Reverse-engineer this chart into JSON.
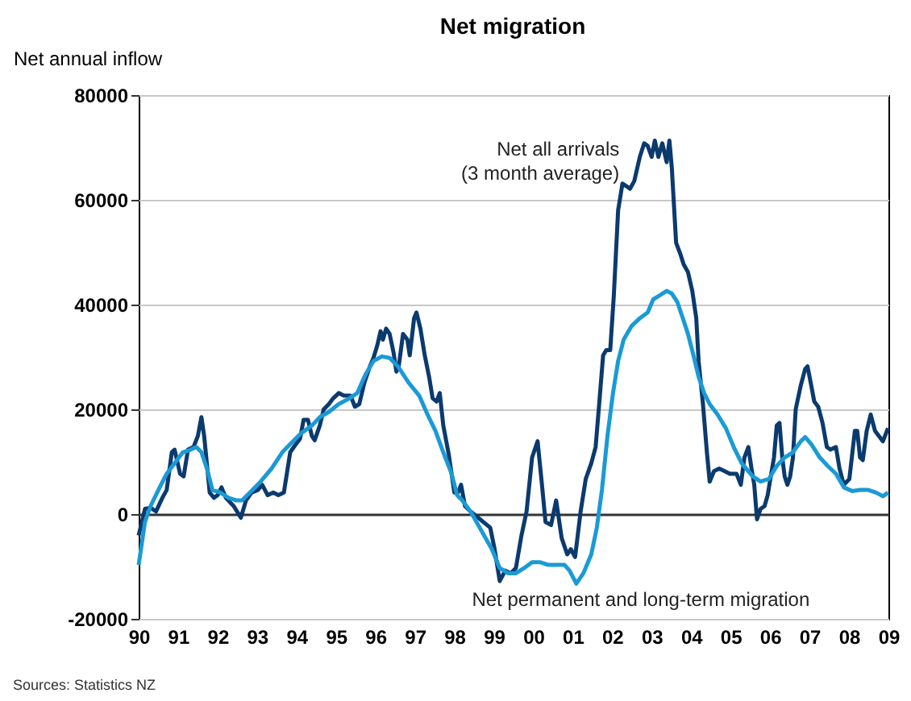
{
  "chart_data": {
    "type": "line",
    "title": "Net migration",
    "ylabel": "Net annual inflow",
    "annotations": [
      "Sources: Statistics NZ"
    ],
    "xlim": [
      1990,
      2009
    ],
    "xticks": [
      {
        "value": 1990,
        "label": "90"
      },
      {
        "value": 1991,
        "label": "91"
      },
      {
        "value": 1992,
        "label": "92"
      },
      {
        "value": 1993,
        "label": "93"
      },
      {
        "value": 1994,
        "label": "94"
      },
      {
        "value": 1995,
        "label": "95"
      },
      {
        "value": 1996,
        "label": "96"
      },
      {
        "value": 1997,
        "label": "97"
      },
      {
        "value": 1998,
        "label": "98"
      },
      {
        "value": 1999,
        "label": "99"
      },
      {
        "value": 2000,
        "label": "00"
      },
      {
        "value": 2001,
        "label": "01"
      },
      {
        "value": 2002,
        "label": "02"
      },
      {
        "value": 2003,
        "label": "03"
      },
      {
        "value": 2004,
        "label": "04"
      },
      {
        "value": 2005,
        "label": "05"
      },
      {
        "value": 2006,
        "label": "06"
      },
      {
        "value": 2007,
        "label": "07"
      },
      {
        "value": 2008,
        "label": "08"
      },
      {
        "value": 2009,
        "label": "09"
      }
    ],
    "ylim": [
      -20000,
      80000
    ],
    "yticks": [
      -20000,
      0,
      20000,
      40000,
      60000,
      80000
    ],
    "grid": "y",
    "line_style": "solid",
    "series": [
      {
        "name": "Net all arrivals\n(3 month average)",
        "color": "#0b3a6e",
        "x": [
          1990.0,
          1990.16,
          1990.3,
          1990.44,
          1990.6,
          1990.71,
          1990.84,
          1990.91,
          1991.05,
          1991.14,
          1991.25,
          1991.39,
          1991.5,
          1991.59,
          1991.66,
          1991.8,
          1991.91,
          1992.0,
          1992.1,
          1992.21,
          1992.41,
          1992.59,
          1992.72,
          1992.86,
          1993.02,
          1993.13,
          1993.27,
          1993.41,
          1993.54,
          1993.68,
          1993.84,
          1993.98,
          1994.09,
          1994.18,
          1994.29,
          1994.39,
          1994.46,
          1994.59,
          1994.69,
          1994.82,
          1994.93,
          1995.07,
          1995.2,
          1995.37,
          1995.48,
          1995.59,
          1995.72,
          1995.86,
          1995.95,
          1996.05,
          1996.13,
          1996.19,
          1996.27,
          1996.36,
          1996.46,
          1996.53,
          1996.59,
          1996.7,
          1996.81,
          1996.87,
          1996.98,
          1997.04,
          1997.14,
          1997.25,
          1997.36,
          1997.45,
          1997.55,
          1997.63,
          1997.72,
          1997.86,
          1998.0,
          1998.09,
          1998.17,
          1998.27,
          1998.41,
          1998.91,
          1999.02,
          1999.15,
          1999.29,
          1999.43,
          1999.56,
          1999.7,
          1999.83,
          1999.97,
          2000.11,
          2000.22,
          2000.31,
          2000.45,
          2000.58,
          2000.72,
          2000.86,
          2000.95,
          2001.06,
          2001.2,
          2001.33,
          2001.47,
          2001.58,
          2001.67,
          2001.77,
          2001.85,
          2001.95,
          2002.04,
          2002.15,
          2002.26,
          2002.36,
          2002.45,
          2002.56,
          2002.7,
          2002.81,
          2002.9,
          2003.0,
          2003.08,
          2003.17,
          2003.27,
          2003.38,
          2003.45,
          2003.51,
          2003.62,
          2003.72,
          2003.81,
          2003.92,
          2004.03,
          2004.13,
          2004.19,
          2004.3,
          2004.4,
          2004.47,
          2004.58,
          2004.71,
          2004.85,
          2004.98,
          2005.15,
          2005.26,
          2005.35,
          2005.45,
          2005.53,
          2005.6,
          2005.67,
          2005.76,
          2005.86,
          2005.94,
          2006.03,
          2006.1,
          2006.17,
          2006.24,
          2006.31,
          2006.37,
          2006.44,
          2006.51,
          2006.58,
          2006.65,
          2006.78,
          2006.89,
          2006.95,
          2007.03,
          2007.12,
          2007.22,
          2007.33,
          2007.44,
          2007.53,
          2007.67,
          2007.76,
          2007.87,
          2008.01,
          2008.15,
          2008.21,
          2008.28,
          2008.35,
          2008.45,
          2008.55,
          2008.66,
          2008.76,
          2008.86,
          2008.99
        ],
        "values": [
          -4100,
          1000,
          1200,
          500,
          3100,
          4600,
          11800,
          12300,
          7700,
          7200,
          12300,
          12800,
          14900,
          18500,
          14900,
          4100,
          3100,
          3600,
          5100,
          3100,
          1500,
          -700,
          2600,
          4100,
          4600,
          5600,
          3600,
          4100,
          3600,
          4100,
          11800,
          13300,
          14400,
          18000,
          18000,
          14900,
          14100,
          16900,
          20000,
          21000,
          22100,
          23100,
          22600,
          22600,
          20500,
          21000,
          25100,
          28200,
          29800,
          32300,
          34900,
          33300,
          35400,
          34400,
          30800,
          27200,
          28200,
          34400,
          33300,
          30300,
          37400,
          38500,
          35400,
          30300,
          26200,
          22100,
          21500,
          23100,
          16900,
          11300,
          4100,
          4100,
          5600,
          1500,
          500,
          -2600,
          -6700,
          -12800,
          -10800,
          -11300,
          -10300,
          -4100,
          500,
          10800,
          13900,
          5600,
          -1500,
          -2100,
          2600,
          -4600,
          -7700,
          -6700,
          -8200,
          500,
          6700,
          9700,
          12800,
          21000,
          30300,
          31300,
          31300,
          41600,
          58000,
          63100,
          62600,
          62100,
          63600,
          68200,
          70800,
          70300,
          68200,
          71300,
          68200,
          70800,
          67200,
          71300,
          66200,
          51800,
          49800,
          47700,
          46200,
          42600,
          37400,
          29200,
          21000,
          11800,
          6200,
          8200,
          8700,
          8200,
          7700,
          7700,
          5600,
          10800,
          12800,
          8700,
          5600,
          -1000,
          1000,
          1500,
          3600,
          7700,
          10800,
          16900,
          17400,
          10800,
          7200,
          5600,
          7200,
          10800,
          20000,
          24600,
          27700,
          28200,
          25100,
          21500,
          20500,
          17400,
          12800,
          12300,
          12800,
          8700,
          5600,
          6700,
          15900,
          15900,
          10800,
          10300,
          15900,
          19000,
          15900,
          14900,
          13900,
          16400
        ]
      },
      {
        "name": "Net permanent and long-term migration",
        "color": "#1a9ad6",
        "x": [
          1990.0,
          1990.16,
          1990.3,
          1990.5,
          1990.71,
          1990.91,
          1991.12,
          1991.32,
          1991.46,
          1991.59,
          1991.73,
          1991.87,
          1992.07,
          1992.28,
          1992.48,
          1992.62,
          1992.82,
          1993.09,
          1993.37,
          1993.64,
          1993.91,
          1994.11,
          1994.39,
          1994.59,
          1994.82,
          1995.07,
          1995.34,
          1995.54,
          1995.75,
          1995.95,
          1996.16,
          1996.36,
          1996.57,
          1996.84,
          1997.11,
          1997.32,
          1997.52,
          1997.72,
          1997.93,
          1998.07,
          1998.2,
          1998.41,
          1998.95,
          1999.15,
          1999.36,
          1999.56,
          1999.77,
          1999.97,
          2000.18,
          2000.38,
          2000.58,
          2000.79,
          2000.92,
          2001.09,
          2001.27,
          2001.47,
          2001.61,
          2001.74,
          2001.88,
          2002.02,
          2002.15,
          2002.29,
          2002.49,
          2002.7,
          2002.9,
          2003.04,
          2003.17,
          2003.38,
          2003.51,
          2003.65,
          2003.79,
          2003.92,
          2004.06,
          2004.19,
          2004.33,
          2004.47,
          2004.67,
          2004.88,
          2005.08,
          2005.28,
          2005.56,
          2005.76,
          2005.97,
          2006.17,
          2006.37,
          2006.58,
          2006.78,
          2006.89,
          2007.05,
          2007.26,
          2007.46,
          2007.67,
          2007.87,
          2008.08,
          2008.28,
          2008.49,
          2008.69,
          2008.86,
          2008.99
        ],
        "values": [
          -9700,
          -1500,
          1500,
          4600,
          7700,
          9700,
          11800,
          12300,
          12800,
          11800,
          8700,
          4600,
          4100,
          3100,
          2600,
          2600,
          4100,
          6200,
          8700,
          11800,
          13900,
          15400,
          16900,
          18500,
          19500,
          21000,
          22100,
          23100,
          26700,
          29200,
          30100,
          29800,
          28200,
          25100,
          22600,
          19000,
          15900,
          11800,
          7700,
          3600,
          2600,
          500,
          -6700,
          -10300,
          -11300,
          -11300,
          -10300,
          -9200,
          -9200,
          -9700,
          -9700,
          -9700,
          -10800,
          -13300,
          -11300,
          -7700,
          -2600,
          4600,
          14900,
          23100,
          29200,
          33300,
          35900,
          37400,
          38500,
          41000,
          41600,
          42600,
          42100,
          40500,
          37400,
          34400,
          30300,
          26200,
          23100,
          21000,
          19000,
          16400,
          12800,
          9700,
          7200,
          6200,
          6700,
          9200,
          10800,
          11800,
          13900,
          14700,
          13300,
          10800,
          9200,
          7700,
          5100,
          4400,
          4600,
          4600,
          4100,
          3400,
          4100
        ]
      }
    ]
  }
}
